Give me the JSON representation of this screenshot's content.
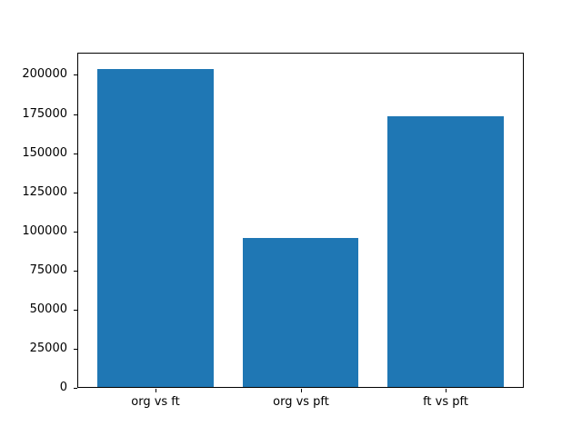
{
  "window": {
    "background": "#ffffff"
  },
  "chart_data": {
    "type": "bar",
    "categories": [
      "org vs ft",
      "org vs pft",
      "ft vs pft"
    ],
    "values": [
      204000,
      96000,
      173500
    ],
    "title": "",
    "xlabel": "",
    "ylabel": "",
    "ylim": [
      0,
      214200
    ],
    "xlim": [
      -0.54,
      2.54
    ],
    "bar_unit_width": 0.8,
    "yticks": [
      0,
      25000,
      50000,
      75000,
      100000,
      125000,
      150000,
      175000,
      200000
    ],
    "ytick_labels": [
      "0",
      "25000",
      "50000",
      "75000",
      "100000",
      "125000",
      "150000",
      "175000",
      "200000"
    ],
    "grid": false,
    "legend": null,
    "bar_color": "#1f77b4",
    "spine_color": "#000000",
    "tick_color": "#000000",
    "text_color": "#000000"
  }
}
